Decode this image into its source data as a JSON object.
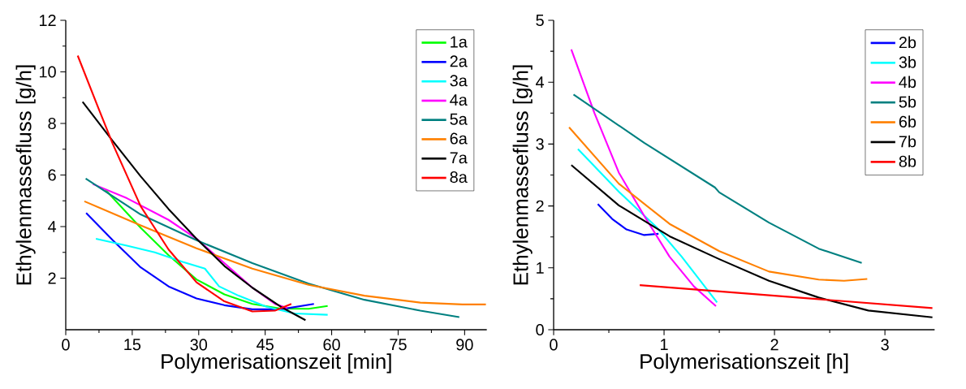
{
  "chart_data": [
    {
      "type": "line",
      "xlabel": "Polymerisationszeit [min]",
      "ylabel": "Ethylenmassefluss [g/h]",
      "xlim": [
        0,
        95
      ],
      "ylim": [
        0,
        12
      ],
      "xticks": [
        0,
        15,
        30,
        45,
        60,
        75,
        90
      ],
      "yticks": [
        2,
        4,
        6,
        8,
        10,
        12
      ],
      "legend": "top right",
      "grid": false,
      "marker": "none",
      "line_style": "solid",
      "series": [
        {
          "name": "1a",
          "color": "#00ff00",
          "x": [
            9.0,
            16.9,
            23.2,
            29.5,
            35.8,
            42.1,
            48.5,
            54.8,
            59.1
          ],
          "values": [
            5.42,
            3.95,
            2.89,
            1.95,
            1.37,
            1.0,
            0.82,
            0.81,
            0.92
          ]
        },
        {
          "name": "2a",
          "color": "#0000ff",
          "x": [
            4.6,
            10.6,
            16.9,
            23.2,
            29.5,
            35.8,
            42.1,
            48.5,
            56.0
          ],
          "values": [
            4.53,
            3.47,
            2.42,
            1.68,
            1.21,
            0.95,
            0.79,
            0.79,
            1.0
          ]
        },
        {
          "name": "3a",
          "color": "#00ffff",
          "x": [
            6.8,
            13.8,
            20.1,
            26.4,
            31.4,
            34.6,
            39.0,
            45.3,
            51.6,
            59.1
          ],
          "values": [
            3.53,
            3.26,
            3.0,
            2.63,
            2.37,
            1.68,
            1.32,
            0.89,
            0.63,
            0.58
          ]
        },
        {
          "name": "4a",
          "color": "#ff00ff",
          "x": [
            6.1,
            13.8,
            23.2,
            29.5,
            35.8,
            42.1,
            47.2,
            50.0
          ],
          "values": [
            5.65,
            5.1,
            4.26,
            3.53,
            2.58,
            1.63,
            1.0,
            0.84
          ]
        },
        {
          "name": "5a",
          "color": "#008080",
          "x": [
            4.5,
            16.9,
            29.5,
            42.1,
            54.8,
            67.4,
            80.0,
            88.8
          ],
          "values": [
            5.86,
            4.47,
            3.47,
            2.58,
            1.79,
            1.16,
            0.74,
            0.49
          ]
        },
        {
          "name": "6a",
          "color": "#ff8000",
          "x": [
            4.2,
            16.9,
            29.5,
            42.1,
            54.8,
            67.4,
            80.0,
            89.5,
            94.8
          ],
          "values": [
            4.98,
            4.05,
            3.16,
            2.37,
            1.74,
            1.32,
            1.05,
            0.98,
            0.98
          ]
        },
        {
          "name": "7a",
          "color": "#000000",
          "x": [
            3.8,
            10.6,
            16.9,
            23.2,
            29.5,
            35.8,
            42.1,
            48.5,
            54.1
          ],
          "values": [
            8.84,
            7.32,
            5.95,
            4.68,
            3.53,
            2.47,
            1.63,
            0.89,
            0.37
          ]
        },
        {
          "name": "8a",
          "color": "#ff0000",
          "x": [
            2.7,
            7.4,
            10.6,
            16.9,
            23.2,
            29.5,
            35.8,
            42.1,
            47.2,
            50.9
          ],
          "values": [
            10.63,
            8.58,
            7.21,
            4.79,
            3.11,
            1.84,
            1.1,
            0.71,
            0.74,
            1.0
          ]
        }
      ]
    },
    {
      "type": "line",
      "xlabel": "Polymerisationszeit [h]",
      "ylabel": "Ethylenmassefluss [g/h]",
      "xlim": [
        0,
        3.45
      ],
      "ylim": [
        0,
        5
      ],
      "xticks": [
        0,
        1,
        2,
        3
      ],
      "yticks": [
        0,
        1,
        2,
        3,
        4,
        5
      ],
      "legend": "top right",
      "grid": false,
      "marker": "none",
      "line_style": "solid",
      "series": [
        {
          "name": "2b",
          "color": "#0000ff",
          "x": [
            0.4,
            0.53,
            0.66,
            0.82,
            0.95
          ],
          "values": [
            2.03,
            1.79,
            1.62,
            1.53,
            1.55
          ]
        },
        {
          "name": "3b",
          "color": "#00ffff",
          "x": [
            0.22,
            0.59,
            0.93,
            1.16,
            1.48
          ],
          "values": [
            2.92,
            2.23,
            1.66,
            1.18,
            0.44
          ]
        },
        {
          "name": "4b",
          "color": "#ff00ff",
          "x": [
            0.16,
            0.37,
            0.59,
            0.82,
            1.05,
            1.27,
            1.47
          ],
          "values": [
            4.53,
            3.5,
            2.54,
            1.84,
            1.18,
            0.7,
            0.38
          ]
        },
        {
          "name": "5b",
          "color": "#008080",
          "x": [
            0.18,
            0.82,
            1.46,
            1.5,
            1.95,
            2.4,
            2.79
          ],
          "values": [
            3.8,
            3.02,
            2.3,
            2.22,
            1.73,
            1.31,
            1.08
          ]
        },
        {
          "name": "6b",
          "color": "#ff8000",
          "x": [
            0.14,
            0.59,
            1.05,
            1.5,
            1.95,
            2.4,
            2.63,
            2.84
          ],
          "values": [
            3.27,
            2.36,
            1.71,
            1.27,
            0.94,
            0.81,
            0.79,
            0.82
          ]
        },
        {
          "name": "7b",
          "color": "#000000",
          "x": [
            0.16,
            0.59,
            1.05,
            1.5,
            1.95,
            2.4,
            2.85,
            3.43
          ],
          "values": [
            2.66,
            2.01,
            1.51,
            1.14,
            0.79,
            0.52,
            0.31,
            0.2
          ]
        },
        {
          "name": "8b",
          "color": "#ff0000",
          "x": [
            0.78,
            3.43
          ],
          "values": [
            0.72,
            0.35
          ]
        }
      ]
    }
  ]
}
